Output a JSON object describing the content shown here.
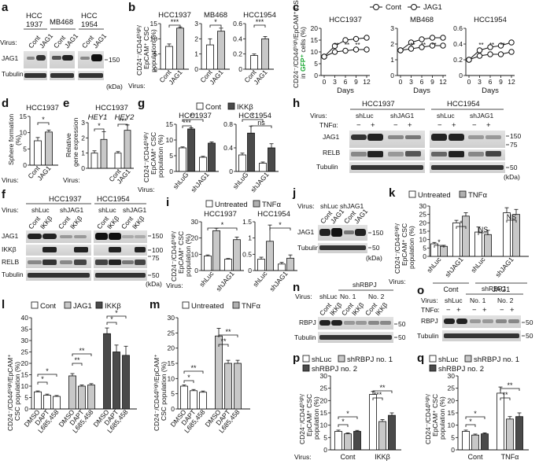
{
  "panel_labels": {
    "a": "a",
    "b": "b",
    "c": "c",
    "d": "d",
    "e": "e",
    "f": "f",
    "g": "g",
    "h": "h",
    "i": "i",
    "j": "j",
    "k": "k",
    "l": "l",
    "m": "m",
    "n": "n",
    "o": "o",
    "p": "p",
    "q": "q"
  },
  "common": {
    "virus": "Virus:",
    "kda": "(kDa)",
    "cont": "Cont",
    "jag1": "JAG1",
    "shluc": "shLuc",
    "shjag1": "shJAG1",
    "shlug": "shLuG",
    "ikkb": "IKKβ",
    "tnfa": "TNFα",
    "tnfa_label": "TNFα:",
    "untreated": "Untreated",
    "minus": "−",
    "plus": "+",
    "ns": "NS",
    "ns_lower": "ns",
    "star1": "*",
    "star2": "**",
    "star3": "***",
    "tubulin": "Tubulin",
    "relb": "RELB",
    "rbpj": "RBPJ",
    "days": "Days",
    "shrbpj": "shRBPJ",
    "no1": "No. 1",
    "no2": "No. 2"
  },
  "ylabels": {
    "csc_line1": "CD24⁻/CD44ʰⁱᵍʰ/",
    "csc_line2": "EpCAM⁺ CSC",
    "csc_line3": "population (%)",
    "c_line1": "CD24⁻/CD44ʰⁱᵍʰ/EpCAM⁺ CSC population",
    "c_line2a": "in ",
    "c_line2b": "GFP⁺",
    "c_line2c": " cells (%)",
    "sphere1": "Sphere formation",
    "sphere2": "(%)",
    "rel1": "Relative",
    "rel2": "gene expression",
    "lm_line1": "CD24⁻/CD44ʰⁱᵍʰ/EpCAM⁺",
    "lm_line2": "CSC population (%)"
  },
  "panel_a": {
    "cell_lines": [
      "HCC\n1937",
      "MB468",
      "HCC\n1954"
    ],
    "cl1a": "HCC",
    "cl1b": "1937",
    "cl2": "MB468",
    "cl3a": "HCC",
    "cl3b": "1954",
    "marker": "150"
  },
  "panel_b": {
    "titles": [
      "HCC1937",
      "MB468",
      "HCC1954"
    ],
    "ticks": [
      [
        "0",
        "5",
        "10",
        "15"
      ],
      [
        "0",
        "1",
        "2",
        "3"
      ],
      [
        "0",
        "0.2",
        "0.4",
        "0.6"
      ]
    ]
  },
  "panel_c": {
    "titles": [
      "HCC1937",
      "MB468",
      "HCC1954"
    ],
    "legend_cont": "Cont",
    "legend_jag1": "JAG1",
    "xticks": [
      "0",
      "3",
      "6",
      "9",
      "12"
    ],
    "yticks1": [
      "0",
      "5",
      "10",
      "15",
      "20"
    ],
    "yticks2": [
      "0",
      "1",
      "2",
      "3"
    ],
    "yticks3": [
      "0",
      "0.2",
      "0.4",
      "0.6"
    ]
  },
  "panel_d": {
    "title": "HCC1937",
    "yticks": [
      "0",
      "5",
      "10",
      "15"
    ]
  },
  "panel_e": {
    "title": "HCC1937",
    "gene1": "HEY1",
    "gene2": "HEY2",
    "yticks": [
      "0",
      "1",
      "2",
      "3"
    ]
  },
  "panel_f": {
    "titles": [
      "HCC1937",
      "HCC1954"
    ],
    "markers": [
      "150",
      "100",
      "75",
      "50"
    ]
  },
  "panel_g": {
    "titles": [
      "HCC1937",
      "HCC1954"
    ],
    "yticks1": [
      "0",
      "5",
      "10",
      "15"
    ],
    "yticks2": [
      "0",
      "0.4",
      "0.8"
    ]
  },
  "panel_h": {
    "titles": [
      "HCC1937",
      "HCC1954"
    ],
    "markers": [
      "150",
      "75",
      "50"
    ]
  },
  "panel_i": {
    "titles": [
      "HCC1937",
      "HCC1954"
    ],
    "yticks1": [
      "0",
      "10",
      "20",
      "30"
    ],
    "yticks2": [
      "0",
      "0.5",
      "1",
      "1.5"
    ]
  },
  "panel_j": {
    "markers": [
      "150",
      "50"
    ]
  },
  "panel_k": {
    "yticks": [
      "0",
      "5",
      "10",
      "15",
      "20",
      "25",
      "30"
    ]
  },
  "panel_l": {
    "yticks": [
      "0",
      "5",
      "10",
      "15",
      "20",
      "25",
      "30",
      "35",
      "40"
    ],
    "dmso": "DMSO",
    "dapt": "DAPT",
    "ly": "L685,458"
  },
  "panel_m": {
    "yticks": [
      "0",
      "5",
      "10",
      "15",
      "20",
      "25",
      "30"
    ]
  },
  "panel_n": {
    "markers": [
      "50",
      "50"
    ]
  },
  "panel_o": {
    "markers": [
      "50",
      "50"
    ]
  },
  "panel_p": {
    "leg1": "shLuc",
    "leg2": "shRBPJ no. 1",
    "leg3": "shRBPJ no. 2",
    "yticks": [
      "0",
      "5",
      "10",
      "15",
      "20",
      "25",
      "30"
    ]
  },
  "panel_q": {
    "leg1": "shLuc",
    "leg2": "shRBPJ no. 1",
    "leg3": "shRBPJ no. 2",
    "yticks": [
      "0",
      "5",
      "10",
      "15",
      "20",
      "25",
      "30"
    ]
  },
  "colors": {
    "white": "#ffffff",
    "light": "#c8c8c8",
    "mid": "#8a8a8a",
    "dark": "#4a4a4a",
    "blot_bg": "#d9d9d9",
    "gfp": "#1aa832"
  }
}
